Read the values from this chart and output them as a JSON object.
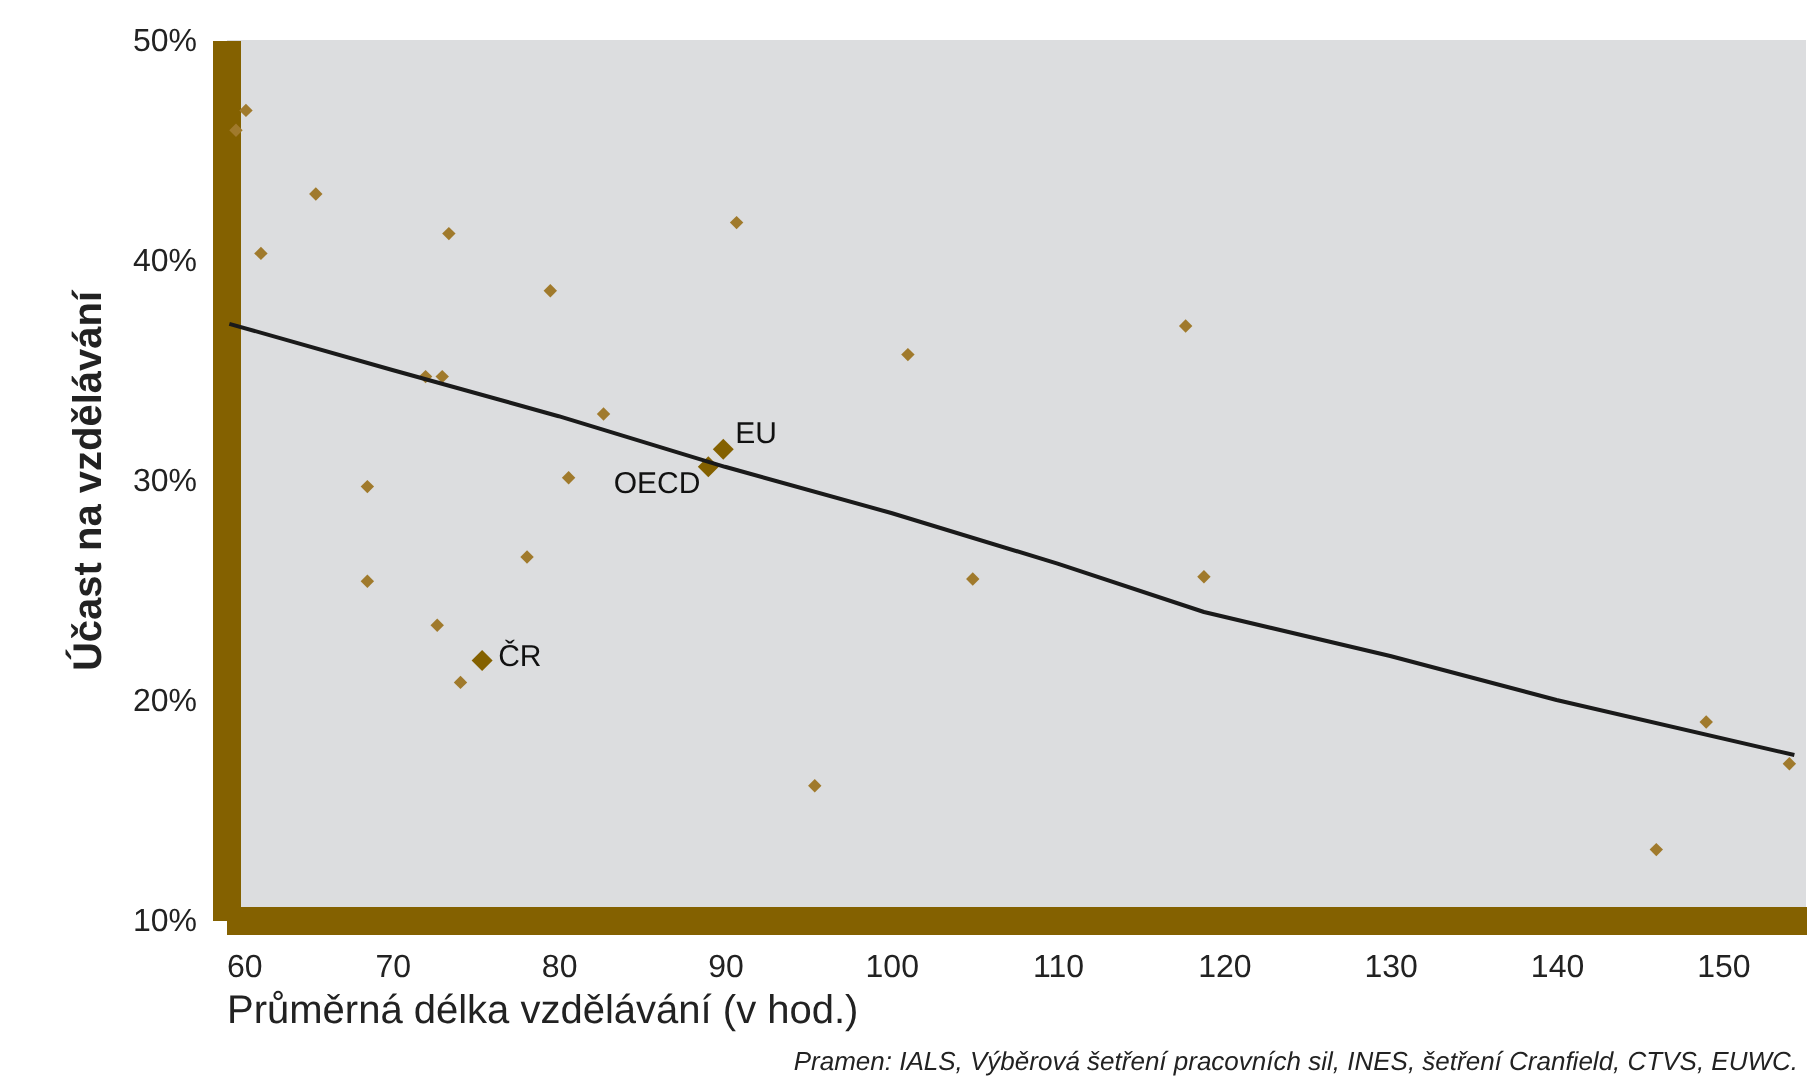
{
  "chart_data": {
    "type": "scatter",
    "xlabel": "Průměrná délka vzdělávání (v hod.)",
    "ylabel": "Účast na vzdělávání",
    "xlim": [
      60,
      155
    ],
    "xticks": [
      60,
      70,
      80,
      90,
      100,
      110,
      120,
      130,
      140,
      150
    ],
    "ylim": [
      10,
      50
    ],
    "yticks": [
      {
        "value": 10,
        "label": "10%"
      },
      {
        "value": 20,
        "label": "20%"
      },
      {
        "value": 30,
        "label": "30%"
      },
      {
        "value": 40,
        "label": "40%"
      },
      {
        "value": 50,
        "label": "50%"
      }
    ],
    "grid": false,
    "marker": "diamond",
    "series": [
      {
        "color": "#a07a2c",
        "x": [
          61.2,
          60.6,
          65.4,
          62.1,
          73.4,
          90.7,
          79.5,
          72.0,
          73.0,
          82.7,
          68.5,
          80.6,
          78.1,
          68.5,
          72.7,
          74.1,
          101.0,
          117.7,
          95.4,
          104.9,
          118.8,
          146.0,
          149.0,
          154.0
        ],
        "values": [
          46.8,
          45.9,
          43.0,
          40.3,
          41.2,
          41.7,
          38.6,
          34.7,
          34.7,
          33.0,
          29.7,
          30.1,
          26.5,
          25.4,
          23.4,
          20.8,
          35.7,
          37.0,
          16.1,
          25.5,
          25.6,
          13.2,
          19.0,
          17.1
        ]
      },
      {
        "color": "#846100",
        "x": [
          89.9,
          89.0,
          75.4
        ],
        "values": [
          31.4,
          30.6,
          21.8
        ]
      },
      {
        "type": "line",
        "marker": "none",
        "color": "#1a1a1a",
        "x": [
          60.2,
          70,
          80,
          90,
          100,
          110,
          118.8,
          130,
          140,
          154.3
        ],
        "values": [
          37.1,
          35.0,
          32.9,
          30.6,
          28.5,
          26.2,
          24.0,
          22.0,
          20.0,
          17.5
        ]
      }
    ],
    "annotations": [
      {
        "text": "EU",
        "x": 89.9,
        "y": 31.4
      },
      {
        "text": "OECD",
        "x": 89.0,
        "y": 30.6
      },
      {
        "text": "ČR",
        "x": 75.4,
        "y": 21.8
      },
      "Pramen: IALS, Výběrová šetření pracovních sil, INES, šetření Cranfield, CTVS, EUWC."
    ]
  }
}
